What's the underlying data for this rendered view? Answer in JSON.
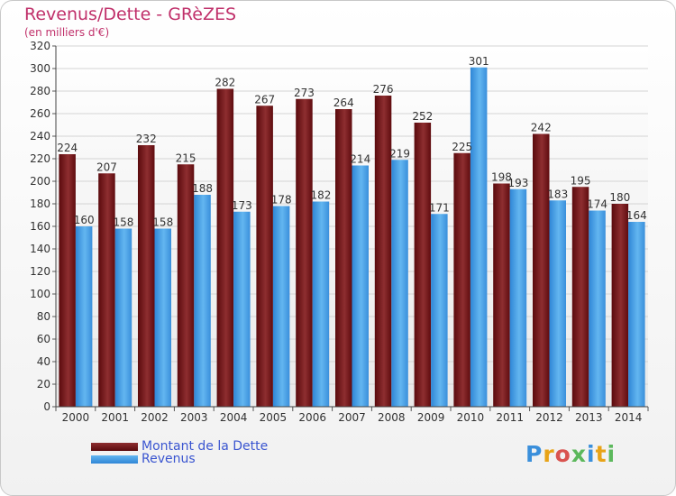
{
  "title": "Revenus/Dette - GRèZES",
  "subtitle": "(en milliers d'€)",
  "brand": "Proxiti",
  "colors": {
    "dette": "#6b0f12",
    "dette_light": "#8e2e30",
    "revenus": "#3a8fdb",
    "revenus_light": "#63b6f0",
    "title": "#c0306a",
    "legend_text": "#3a55d0"
  },
  "chart_data": {
    "type": "bar",
    "categories": [
      "2000",
      "2001",
      "2002",
      "2003",
      "2004",
      "2005",
      "2006",
      "2007",
      "2008",
      "2009",
      "2010",
      "2011",
      "2012",
      "2013",
      "2014"
    ],
    "series": [
      {
        "name": "Montant de la Dette",
        "values": [
          224,
          207,
          232,
          215,
          282,
          267,
          273,
          264,
          276,
          252,
          225,
          198,
          242,
          195,
          180
        ]
      },
      {
        "name": "Revenus",
        "values": [
          160,
          158,
          158,
          188,
          173,
          178,
          182,
          214,
          219,
          171,
          301,
          193,
          183,
          174,
          164
        ]
      }
    ],
    "ylim": [
      0,
      320
    ],
    "yticks": [
      0,
      20,
      40,
      60,
      80,
      100,
      120,
      140,
      160,
      180,
      200,
      220,
      240,
      260,
      280,
      300,
      320
    ],
    "grid": true,
    "legend": "bottom-left"
  }
}
